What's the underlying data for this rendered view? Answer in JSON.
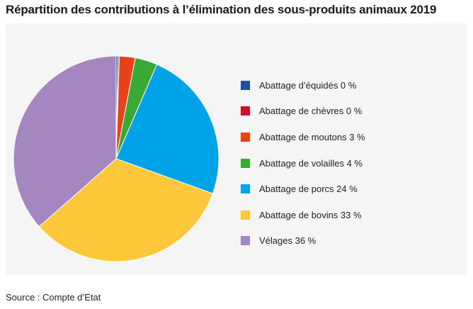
{
  "title": "Répartition des contributions à l’élimination des sous-produits animaux 2019",
  "source": "Source : Compte d’Etat",
  "chart_data": {
    "type": "pie",
    "title": "Répartition des contributions à l’élimination des sous-produits animaux 2019",
    "unit": "%",
    "legend_position": "right",
    "slices": [
      {
        "name": "Abattage d’équidés",
        "value": 0.3,
        "label": "Abattage d’équidés 0 %",
        "color": "#1f4e9c"
      },
      {
        "name": "Abattage de chèvres",
        "value": 0.2,
        "label": "Abattage de chèvres 0 %",
        "color": "#c8102e"
      },
      {
        "name": "Abattage de moutons",
        "value": 2.5,
        "label": "Abattage de moutons 3 %",
        "color": "#e8421b"
      },
      {
        "name": "Abattage de volailles",
        "value": 3.5,
        "label": "Abattage de volailles 4 %",
        "color": "#3aaa35"
      },
      {
        "name": "Abattage de porcs",
        "value": 24.0,
        "label": "Abattage de porcs 24 %",
        "color": "#00a3e8"
      },
      {
        "name": "Abattage de bovins",
        "value": 33.0,
        "label": "Abattage de bovins 33 %",
        "color": "#ffc83a"
      },
      {
        "name": "Vélages",
        "value": 36.5,
        "label": "Vélages 36 %",
        "color": "#a487c0"
      }
    ]
  }
}
